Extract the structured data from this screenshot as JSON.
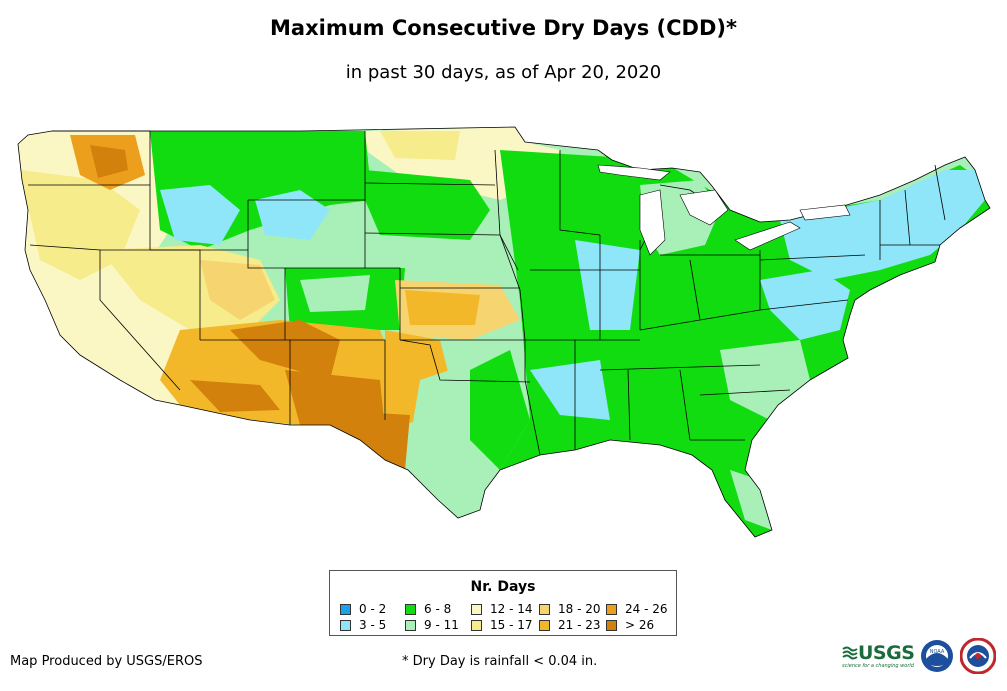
{
  "title": "Maximum Consecutive Dry Days (CDD)*",
  "subtitle": "in past 30 days, as of Apr 20, 2020",
  "legend": {
    "title": "Nr. Days",
    "items": [
      {
        "label": "0 - 2",
        "color": "#1aa3ec"
      },
      {
        "label": "3 - 5",
        "color": "#8ee6f8"
      },
      {
        "label": "6 - 8",
        "color": "#10dc10"
      },
      {
        "label": "9 - 11",
        "color": "#a8f0b8"
      },
      {
        "label": "12 - 14",
        "color": "#fbf7c4"
      },
      {
        "label": "15 - 17",
        "color": "#f6ec8c"
      },
      {
        "label": "18 - 20",
        "color": "#f6d470"
      },
      {
        "label": "21 - 23",
        "color": "#f3b82a"
      },
      {
        "label": "24 - 26",
        "color": "#ec9f1d"
      },
      {
        "label": "> 26",
        "color": "#d2820c"
      }
    ]
  },
  "footer": {
    "producer": "Map Produced by USGS/EROS",
    "note": "* Dry Day is rainfall < 0.04 in."
  },
  "logos": {
    "usgs": "USGS",
    "usgs_tagline": "science for a changing world",
    "noaa": "NOAA"
  }
}
